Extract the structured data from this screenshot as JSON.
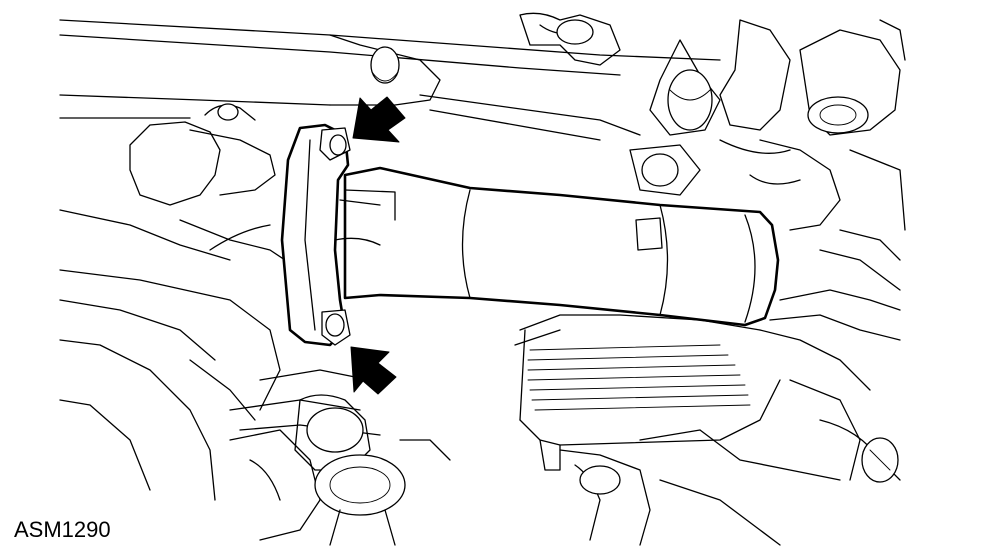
{
  "figure": {
    "label": "ASM1290"
  },
  "callouts": [
    {
      "icon": "arrow-pointer-icon",
      "target": "upper-fastener"
    },
    {
      "icon": "arrow-pointer-icon",
      "target": "lower-fastener"
    }
  ],
  "colors": {
    "ink": "#000000",
    "paper": "#ffffff"
  }
}
